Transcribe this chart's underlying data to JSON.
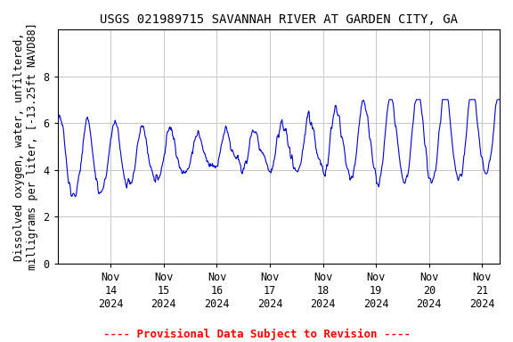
{
  "title": "USGS 021989715 SAVANNAH RIVER AT GARDEN CITY, GA",
  "ylabel_line1": "Dissolved oxygen, water, unfiltered,",
  "ylabel_line2": "milligrams per liter, [-13.25ft NAVD88]",
  "ylim": [
    0,
    10
  ],
  "yticks": [
    0,
    2,
    4,
    6,
    8
  ],
  "xlim_start": 0.0,
  "xlim_end": 8.33,
  "xtick_positions": [
    1,
    2,
    3,
    4,
    5,
    6,
    7,
    8
  ],
  "xtick_labels": [
    "Nov\n14\n2024",
    "Nov\n15\n2024",
    "Nov\n16\n2024",
    "Nov\n17\n2024",
    "Nov\n18\n2024",
    "Nov\n19\n2024",
    "Nov\n20\n2024",
    "Nov\n21\n2024"
  ],
  "line_color": "#0000cc",
  "line_width": 0.8,
  "background_color": "#ffffff",
  "grid_color": "#c8c8c8",
  "title_fontsize": 10,
  "label_fontsize": 8.5,
  "tick_fontsize": 8.5,
  "footer_text": "---- Provisional Data Subject to Revision ----",
  "footer_color": "#ff0000",
  "footer_fontsize": 9
}
